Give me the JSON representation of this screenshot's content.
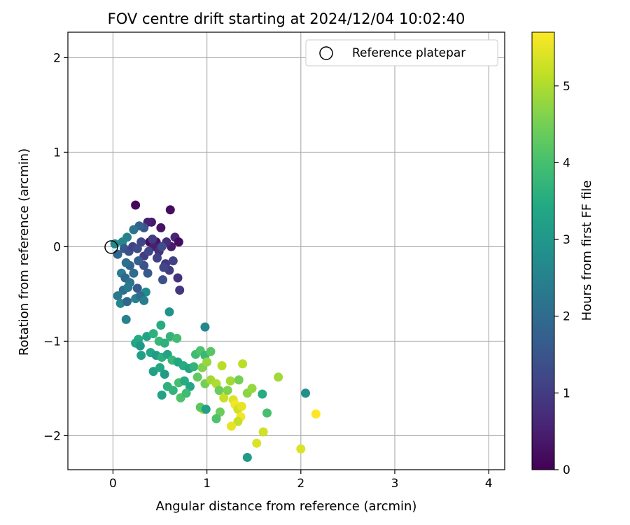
{
  "chart_data": {
    "type": "scatter",
    "title": "FOV centre drift starting at 2024/12/04 10:02:40",
    "xlabel": "Angular distance from reference (arcmin)",
    "ylabel": "Rotation from reference (arcmin)",
    "xlim": [
      -0.48,
      4.17
    ],
    "ylim": [
      -2.36,
      2.27
    ],
    "xticks": [
      0,
      1,
      2,
      3,
      4
    ],
    "yticks": [
      -2,
      -1,
      0,
      1,
      2
    ],
    "grid": true,
    "legend": {
      "placement": "top-right",
      "entries": [
        "Reference platepar"
      ]
    },
    "reference_point": {
      "x": 0,
      "y": 0,
      "marker": "open-circle",
      "color": "#000000"
    },
    "colorbar": {
      "label": "Hours from first FF file",
      "range": [
        0,
        5.7
      ],
      "ticks": [
        0,
        1,
        2,
        3,
        4,
        5
      ],
      "colormap": "viridis"
    },
    "points": [
      {
        "x": 0.24,
        "y": 0.44,
        "c": 0.1
      },
      {
        "x": 0.61,
        "y": 0.39,
        "c": 0.2
      },
      {
        "x": 0.41,
        "y": 0.26,
        "c": 0.4
      },
      {
        "x": 0.37,
        "y": 0.26,
        "c": 0.5
      },
      {
        "x": 0.51,
        "y": 0.2,
        "c": 0.3
      },
      {
        "x": 0.46,
        "y": 0.05,
        "c": 0.3
      },
      {
        "x": 0.66,
        "y": 0.1,
        "c": 0.6
      },
      {
        "x": 0.7,
        "y": 0.05,
        "c": 0.2
      },
      {
        "x": 0.39,
        "y": 0.05,
        "c": 0.2
      },
      {
        "x": 0.62,
        "y": 0.0,
        "c": 0.4
      },
      {
        "x": 0.43,
        "y": 0.0,
        "c": 0.5
      },
      {
        "x": 0.57,
        "y": 0.05,
        "c": 0.7
      },
      {
        "x": 0.49,
        "y": -0.05,
        "c": 0.8
      },
      {
        "x": 0.33,
        "y": 0.2,
        "c": 1.5
      },
      {
        "x": 0.28,
        "y": 0.22,
        "c": 1.8
      },
      {
        "x": 0.22,
        "y": 0.18,
        "c": 2.2
      },
      {
        "x": 0.15,
        "y": 0.1,
        "c": 2.5
      },
      {
        "x": 0.1,
        "y": 0.05,
        "c": 2.6
      },
      {
        "x": 0.02,
        "y": 0.03,
        "c": 2.7
      },
      {
        "x": 0.05,
        "y": -0.08,
        "c": 1.9
      },
      {
        "x": 0.12,
        "y": -0.02,
        "c": 1.6
      },
      {
        "x": 0.17,
        "y": -0.05,
        "c": 1.4
      },
      {
        "x": 0.21,
        "y": 0.0,
        "c": 1.1
      },
      {
        "x": 0.26,
        "y": -0.02,
        "c": 1.3
      },
      {
        "x": 0.3,
        "y": 0.05,
        "c": 1.2
      },
      {
        "x": 0.33,
        "y": -0.1,
        "c": 1.0
      },
      {
        "x": 0.38,
        "y": -0.05,
        "c": 1.2
      },
      {
        "x": 0.42,
        "y": 0.08,
        "c": 1.0
      },
      {
        "x": 0.47,
        "y": -0.12,
        "c": 1.1
      },
      {
        "x": 0.52,
        "y": 0.0,
        "c": 1.3
      },
      {
        "x": 0.56,
        "y": -0.18,
        "c": 0.9
      },
      {
        "x": 0.6,
        "y": -0.25,
        "c": 1.0
      },
      {
        "x": 0.64,
        "y": -0.15,
        "c": 1.1
      },
      {
        "x": 0.54,
        "y": -0.22,
        "c": 1.2
      },
      {
        "x": 0.69,
        "y": -0.33,
        "c": 0.8
      },
      {
        "x": 0.71,
        "y": -0.46,
        "c": 0.9
      },
      {
        "x": 0.53,
        "y": -0.35,
        "c": 1.4
      },
      {
        "x": 0.37,
        "y": -0.28,
        "c": 1.6
      },
      {
        "x": 0.33,
        "y": -0.2,
        "c": 1.4
      },
      {
        "x": 0.27,
        "y": -0.15,
        "c": 1.7
      },
      {
        "x": 0.22,
        "y": -0.28,
        "c": 2.0
      },
      {
        "x": 0.18,
        "y": -0.2,
        "c": 1.8
      },
      {
        "x": 0.14,
        "y": -0.17,
        "c": 2.1
      },
      {
        "x": 0.09,
        "y": -0.28,
        "c": 2.4
      },
      {
        "x": 0.13,
        "y": -0.33,
        "c": 1.9
      },
      {
        "x": 0.18,
        "y": -0.38,
        "c": 2.2
      },
      {
        "x": 0.26,
        "y": -0.44,
        "c": 1.6
      },
      {
        "x": 0.35,
        "y": -0.48,
        "c": 2.7
      },
      {
        "x": 0.11,
        "y": -0.46,
        "c": 2.1
      },
      {
        "x": 0.16,
        "y": -0.43,
        "c": 2.3
      },
      {
        "x": 0.05,
        "y": -0.52,
        "c": 2.3
      },
      {
        "x": 0.08,
        "y": -0.6,
        "c": 2.6
      },
      {
        "x": 0.15,
        "y": -0.58,
        "c": 1.9
      },
      {
        "x": 0.24,
        "y": -0.55,
        "c": 2.5
      },
      {
        "x": 0.29,
        "y": -0.52,
        "c": 2.0
      },
      {
        "x": 0.33,
        "y": -0.57,
        "c": 2.4
      },
      {
        "x": 0.14,
        "y": -0.77,
        "c": 2.5
      },
      {
        "x": 0.6,
        "y": -0.69,
        "c": 2.9
      },
      {
        "x": 0.98,
        "y": -0.85,
        "c": 2.6
      },
      {
        "x": 0.51,
        "y": -0.83,
        "c": 3.5
      },
      {
        "x": 0.36,
        "y": -0.95,
        "c": 3.3
      },
      {
        "x": 0.43,
        "y": -0.92,
        "c": 3.6
      },
      {
        "x": 0.27,
        "y": -0.98,
        "c": 3.5
      },
      {
        "x": 0.24,
        "y": -1.02,
        "c": 3.4
      },
      {
        "x": 0.29,
        "y": -1.05,
        "c": 3.0
      },
      {
        "x": 0.49,
        "y": -1.0,
        "c": 3.8
      },
      {
        "x": 0.55,
        "y": -1.02,
        "c": 3.6
      },
      {
        "x": 0.61,
        "y": -0.95,
        "c": 3.7
      },
      {
        "x": 0.68,
        "y": -0.97,
        "c": 3.9
      },
      {
        "x": 0.3,
        "y": -1.15,
        "c": 3.2
      },
      {
        "x": 0.4,
        "y": -1.12,
        "c": 3.4
      },
      {
        "x": 0.46,
        "y": -1.15,
        "c": 3.1
      },
      {
        "x": 0.52,
        "y": -1.17,
        "c": 3.6
      },
      {
        "x": 0.58,
        "y": -1.14,
        "c": 3.3
      },
      {
        "x": 0.63,
        "y": -1.2,
        "c": 3.8
      },
      {
        "x": 0.69,
        "y": -1.22,
        "c": 3.4
      },
      {
        "x": 0.75,
        "y": -1.26,
        "c": 3.5
      },
      {
        "x": 0.81,
        "y": -1.29,
        "c": 3.3
      },
      {
        "x": 0.86,
        "y": -1.27,
        "c": 3.7
      },
      {
        "x": 0.88,
        "y": -1.14,
        "c": 3.9
      },
      {
        "x": 0.93,
        "y": -1.1,
        "c": 4.1
      },
      {
        "x": 0.98,
        "y": -1.15,
        "c": 3.8
      },
      {
        "x": 1.04,
        "y": -1.11,
        "c": 4.2
      },
      {
        "x": 0.43,
        "y": -1.32,
        "c": 3.2
      },
      {
        "x": 0.5,
        "y": -1.28,
        "c": 3.4
      },
      {
        "x": 0.55,
        "y": -1.35,
        "c": 3.1
      },
      {
        "x": 0.58,
        "y": -1.48,
        "c": 3.6
      },
      {
        "x": 0.52,
        "y": -1.57,
        "c": 3.3
      },
      {
        "x": 0.64,
        "y": -1.52,
        "c": 3.7
      },
      {
        "x": 0.7,
        "y": -1.44,
        "c": 4.0
      },
      {
        "x": 0.76,
        "y": -1.42,
        "c": 3.5
      },
      {
        "x": 0.82,
        "y": -1.48,
        "c": 3.4
      },
      {
        "x": 0.72,
        "y": -1.6,
        "c": 4.1
      },
      {
        "x": 0.78,
        "y": -1.55,
        "c": 3.9
      },
      {
        "x": 0.9,
        "y": -1.38,
        "c": 4.3
      },
      {
        "x": 0.95,
        "y": -1.28,
        "c": 4.6
      },
      {
        "x": 1.0,
        "y": -1.22,
        "c": 4.8
      },
      {
        "x": 0.98,
        "y": -1.45,
        "c": 4.5
      },
      {
        "x": 1.04,
        "y": -1.41,
        "c": 4.9
      },
      {
        "x": 1.1,
        "y": -1.45,
        "c": 5.0
      },
      {
        "x": 1.13,
        "y": -1.52,
        "c": 4.4
      },
      {
        "x": 1.18,
        "y": -1.6,
        "c": 5.2
      },
      {
        "x": 1.22,
        "y": -1.52,
        "c": 4.6
      },
      {
        "x": 1.25,
        "y": -1.42,
        "c": 4.9
      },
      {
        "x": 1.16,
        "y": -1.26,
        "c": 5.1
      },
      {
        "x": 1.28,
        "y": -1.62,
        "c": 5.4
      },
      {
        "x": 1.3,
        "y": -1.67,
        "c": 5.6
      },
      {
        "x": 1.33,
        "y": -1.72,
        "c": 5.3
      },
      {
        "x": 1.37,
        "y": -1.69,
        "c": 5.5
      },
      {
        "x": 1.36,
        "y": -1.8,
        "c": 5.6
      },
      {
        "x": 1.33,
        "y": -1.85,
        "c": 5.2
      },
      {
        "x": 1.26,
        "y": -1.9,
        "c": 5.5
      },
      {
        "x": 1.14,
        "y": -1.75,
        "c": 4.4
      },
      {
        "x": 1.1,
        "y": -1.82,
        "c": 4.1
      },
      {
        "x": 0.96,
        "y": -1.72,
        "c": 5.0
      },
      {
        "x": 0.93,
        "y": -1.7,
        "c": 4.2
      },
      {
        "x": 0.99,
        "y": -1.72,
        "c": 3.2
      },
      {
        "x": 1.34,
        "y": -1.41,
        "c": 4.5
      },
      {
        "x": 1.38,
        "y": -1.24,
        "c": 5.1
      },
      {
        "x": 1.43,
        "y": -1.55,
        "c": 4.7
      },
      {
        "x": 1.48,
        "y": -1.5,
        "c": 4.8
      },
      {
        "x": 1.59,
        "y": -1.56,
        "c": 3.5
      },
      {
        "x": 1.64,
        "y": -1.76,
        "c": 4.0
      },
      {
        "x": 1.76,
        "y": -1.38,
        "c": 4.9
      },
      {
        "x": 1.6,
        "y": -1.96,
        "c": 5.3
      },
      {
        "x": 1.53,
        "y": -2.08,
        "c": 5.4
      },
      {
        "x": 2.0,
        "y": -2.14,
        "c": 5.4
      },
      {
        "x": 2.16,
        "y": -1.77,
        "c": 5.7
      },
      {
        "x": 2.05,
        "y": -1.55,
        "c": 2.8
      },
      {
        "x": 1.43,
        "y": -2.23,
        "c": 3.1
      }
    ]
  }
}
